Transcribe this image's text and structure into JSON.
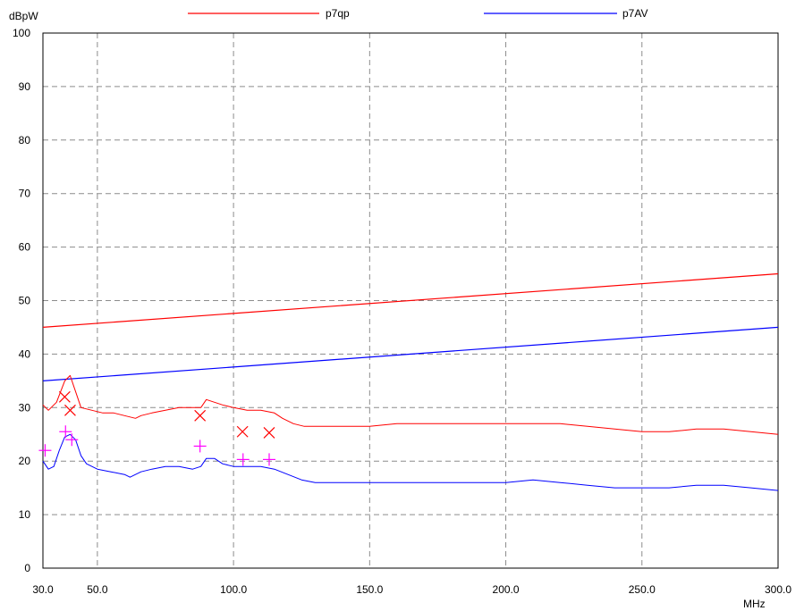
{
  "chart_data": {
    "type": "line",
    "ylabel": "dBpW",
    "xlabel": "MHz",
    "xlim": [
      30,
      300
    ],
    "ylim": [
      0,
      100
    ],
    "grid": true,
    "legend_position": "top",
    "x_ticks": [
      "30.0",
      "50.0",
      "100.0",
      "150.0",
      "200.0",
      "250.0",
      "300.0"
    ],
    "x_tick_values": [
      30,
      50,
      100,
      150,
      200,
      250,
      300
    ],
    "y_ticks": [
      "0",
      "10",
      "20",
      "30",
      "40",
      "50",
      "60",
      "70",
      "80",
      "90",
      "100"
    ],
    "y_tick_values": [
      0,
      10,
      20,
      30,
      40,
      50,
      60,
      70,
      80,
      90,
      100
    ],
    "series": [
      {
        "name": "p7qp",
        "color": "#ff0000",
        "kind": "limit",
        "points": [
          [
            30,
            45
          ],
          [
            300,
            55
          ]
        ]
      },
      {
        "name": "p7AV",
        "color": "#0000ff",
        "kind": "limit",
        "points": [
          [
            30,
            35
          ],
          [
            300,
            45
          ]
        ]
      },
      {
        "name": "",
        "color": "#ff0000",
        "kind": "trace",
        "points": [
          [
            30,
            30.5
          ],
          [
            32,
            29.5
          ],
          [
            35,
            31
          ],
          [
            38,
            35
          ],
          [
            40,
            36
          ],
          [
            42,
            33
          ],
          [
            44,
            30
          ],
          [
            48,
            29.5
          ],
          [
            52,
            29
          ],
          [
            56,
            29
          ],
          [
            60,
            28.5
          ],
          [
            64,
            28
          ],
          [
            66,
            28.5
          ],
          [
            70,
            29
          ],
          [
            75,
            29.5
          ],
          [
            80,
            30
          ],
          [
            85,
            30
          ],
          [
            88,
            30
          ],
          [
            90,
            31.5
          ],
          [
            93,
            31
          ],
          [
            96,
            30.5
          ],
          [
            100,
            30
          ],
          [
            105,
            29.5
          ],
          [
            110,
            29.5
          ],
          [
            115,
            29
          ],
          [
            118,
            28
          ],
          [
            122,
            27
          ],
          [
            126,
            26.5
          ],
          [
            130,
            26.5
          ],
          [
            140,
            26.5
          ],
          [
            150,
            26.5
          ],
          [
            160,
            27
          ],
          [
            170,
            27
          ],
          [
            180,
            27
          ],
          [
            190,
            27
          ],
          [
            200,
            27
          ],
          [
            210,
            27
          ],
          [
            220,
            27
          ],
          [
            230,
            26.5
          ],
          [
            240,
            26
          ],
          [
            250,
            25.5
          ],
          [
            260,
            25.5
          ],
          [
            270,
            26
          ],
          [
            280,
            26
          ],
          [
            290,
            25.5
          ],
          [
            300,
            25
          ]
        ]
      },
      {
        "name": "",
        "color": "#0000ff",
        "kind": "trace",
        "points": [
          [
            30,
            20
          ],
          [
            32,
            18.5
          ],
          [
            34,
            19
          ],
          [
            36,
            22
          ],
          [
            38,
            24.5
          ],
          [
            40,
            25
          ],
          [
            42,
            24
          ],
          [
            44,
            21
          ],
          [
            46,
            19.5
          ],
          [
            50,
            18.5
          ],
          [
            55,
            18
          ],
          [
            60,
            17.5
          ],
          [
            62,
            17
          ],
          [
            64,
            17.5
          ],
          [
            66,
            18
          ],
          [
            70,
            18.5
          ],
          [
            75,
            19
          ],
          [
            80,
            19
          ],
          [
            85,
            18.5
          ],
          [
            88,
            19
          ],
          [
            90,
            20.5
          ],
          [
            93,
            20.5
          ],
          [
            96,
            19.5
          ],
          [
            100,
            19
          ],
          [
            105,
            19
          ],
          [
            110,
            19
          ],
          [
            115,
            18.5
          ],
          [
            120,
            17.5
          ],
          [
            125,
            16.5
          ],
          [
            130,
            16
          ],
          [
            140,
            16
          ],
          [
            150,
            16
          ],
          [
            160,
            16
          ],
          [
            170,
            16
          ],
          [
            180,
            16
          ],
          [
            190,
            16
          ],
          [
            200,
            16
          ],
          [
            210,
            16.5
          ],
          [
            220,
            16
          ],
          [
            230,
            15.5
          ],
          [
            240,
            15
          ],
          [
            250,
            15
          ],
          [
            260,
            15
          ],
          [
            270,
            15.5
          ],
          [
            280,
            15.5
          ],
          [
            290,
            15
          ],
          [
            300,
            14.5
          ]
        ]
      }
    ],
    "markers": {
      "x_marks": {
        "symbol": "×",
        "color": "#ff0000",
        "points": [
          [
            38,
            32
          ],
          [
            40,
            29.5
          ],
          [
            87.7,
            28.5
          ],
          [
            103.3,
            25.5
          ],
          [
            113.1,
            25.3
          ]
        ]
      },
      "plus_marks": {
        "symbol": "+",
        "color": "#ff00ff",
        "points": [
          [
            30.8,
            22
          ],
          [
            38.3,
            25.5
          ],
          [
            40.6,
            24
          ],
          [
            87.7,
            22.8
          ],
          [
            103.5,
            20.3
          ],
          [
            113.1,
            20.3
          ]
        ]
      }
    }
  }
}
